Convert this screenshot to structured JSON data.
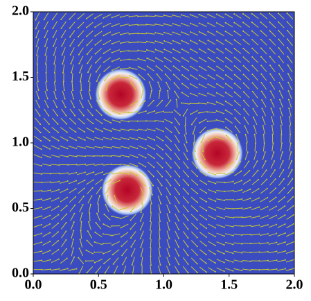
{
  "chart_data": {
    "type": "scatter",
    "x": [
      0.67,
      0.72,
      1.41
    ],
    "y": [
      1.37,
      0.64,
      0.92
    ],
    "sizes": [
      0.16,
      0.16,
      0.16
    ],
    "color": "#b40426",
    "background": "#3b4cc0",
    "arrow_color": "#c8c832",
    "xlim": [
      0,
      2
    ],
    "ylim": [
      0,
      2
    ],
    "xticks": [
      {
        "value": 0,
        "label": "0.0"
      },
      0.5,
      {
        "value": 1,
        "label": "1.0"
      },
      1.5,
      {
        "value": 2,
        "label": "2.0"
      }
    ],
    "yticks": [
      {
        "value": 0,
        "label": "0.0"
      },
      0.5,
      {
        "value": 1,
        "label": "1.0"
      },
      1.5,
      {
        "value": 2,
        "label": "2.0"
      }
    ]
  }
}
